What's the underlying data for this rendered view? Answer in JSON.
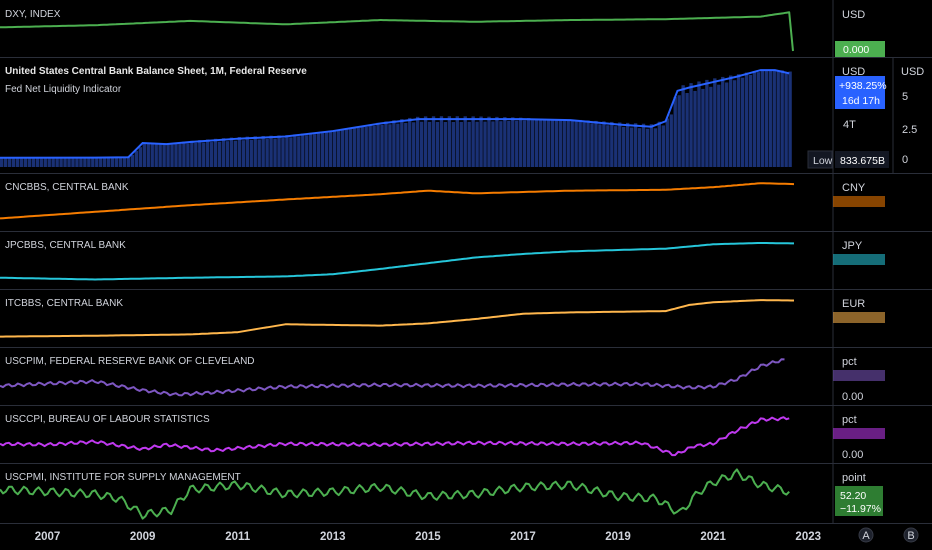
{
  "chart_data": [
    {
      "type": "line",
      "title": "DXY, INDEX",
      "unit": "USD",
      "last_value_label": "0.000",
      "color": "#4caf50",
      "x": [
        2006.0,
        2008.0,
        2010.0,
        2012.0,
        2014.0,
        2016.0,
        2018.0,
        2020.0,
        2022.0,
        2022.6,
        2022.68
      ],
      "values": [
        0.55,
        0.6,
        0.7,
        0.62,
        0.72,
        0.68,
        0.72,
        0.74,
        0.8,
        0.9,
        0.0
      ],
      "ylim": [
        0,
        1
      ]
    },
    {
      "type": "area",
      "title": "United States Central Bank Balance Sheet, 1M, Federal Reserve",
      "subtitle": "Fed Net Liquidity Indicator",
      "unit": "USD",
      "unit_right": "USD",
      "color": "#2962ff",
      "badges": {
        "pct": "+938.25%",
        "countdown": "16d 17h",
        "low_label": "Low",
        "low_value": "833.675B"
      },
      "y_ticks_left": [
        "4T"
      ],
      "y_ticks_right": [
        "5",
        "2.5",
        "0"
      ],
      "x": [
        2006.0,
        2008.0,
        2008.7,
        2009.0,
        2009.5,
        2010.0,
        2011.0,
        2012.0,
        2013.0,
        2014.0,
        2014.8,
        2016.0,
        2017.0,
        2018.0,
        2019.0,
        2019.7,
        2020.0,
        2020.25,
        2020.5,
        2021.0,
        2021.5,
        2022.0,
        2022.3,
        2022.6
      ],
      "values": [
        0.85,
        0.86,
        0.9,
        2.2,
        2.1,
        2.3,
        2.6,
        2.8,
        3.3,
        4.0,
        4.4,
        4.4,
        4.4,
        4.3,
        3.9,
        3.7,
        4.2,
        7.0,
        7.3,
        7.8,
        8.3,
        8.9,
        8.9,
        8.6
      ],
      "ylim": [
        0,
        9
      ]
    },
    {
      "type": "line",
      "title": "CNCBBS, CENTRAL BANK",
      "unit": "CNY",
      "color": "#f57c00",
      "x": [
        2006.0,
        2008.0,
        2010.0,
        2012.0,
        2014.0,
        2015.0,
        2016.0,
        2018.0,
        2020.0,
        2021.0,
        2022.0,
        2022.7
      ],
      "values": [
        0.15,
        0.3,
        0.45,
        0.58,
        0.7,
        0.78,
        0.72,
        0.78,
        0.8,
        0.86,
        0.95,
        0.93
      ],
      "ylim": [
        0,
        1
      ]
    },
    {
      "type": "line",
      "title": "JPCBBS, CENTRAL BANK",
      "unit": "JPY",
      "color": "#26c6da",
      "x": [
        2006.0,
        2008.0,
        2010.0,
        2012.0,
        2013.0,
        2014.0,
        2015.0,
        2016.0,
        2017.0,
        2018.0,
        2019.0,
        2020.0,
        2021.0,
        2022.0,
        2022.7
      ],
      "values": [
        0.12,
        0.08,
        0.12,
        0.15,
        0.2,
        0.32,
        0.45,
        0.58,
        0.66,
        0.72,
        0.75,
        0.78,
        0.88,
        0.91,
        0.9
      ],
      "ylim": [
        0,
        1
      ]
    },
    {
      "type": "line",
      "title": "ITCBBS, CENTRAL BANK",
      "unit": "EUR",
      "color": "#ffb74d",
      "x": [
        2006.0,
        2008.0,
        2010.0,
        2011.0,
        2012.0,
        2014.0,
        2015.0,
        2016.0,
        2017.0,
        2018.0,
        2020.0,
        2020.5,
        2021.0,
        2022.0,
        2022.7
      ],
      "values": [
        0.1,
        0.12,
        0.15,
        0.2,
        0.38,
        0.35,
        0.4,
        0.5,
        0.62,
        0.65,
        0.68,
        0.82,
        0.88,
        0.93,
        0.92
      ],
      "ylim": [
        0,
        1
      ]
    },
    {
      "type": "line",
      "title": "USCPIM, FEDERAL RESERVE BANK OF CLEVELAND",
      "unit": "pct",
      "y_tick": "0.00",
      "color": "#7e57c2",
      "x": [
        2006.0,
        2007.0,
        2008.0,
        2009.0,
        2009.7,
        2010.5,
        2012.0,
        2014.0,
        2016.0,
        2018.0,
        2019.5,
        2020.5,
        2021.0,
        2021.5,
        2022.0,
        2022.5
      ],
      "values": [
        0.3,
        0.35,
        0.4,
        0.2,
        0.1,
        0.15,
        0.28,
        0.32,
        0.3,
        0.33,
        0.34,
        0.26,
        0.28,
        0.45,
        0.75,
        0.9
      ],
      "ylim": [
        0,
        1
      ]
    },
    {
      "type": "line",
      "title": "USCCPI, BUREAU OF LABOUR STATISTICS",
      "unit": "pct",
      "y_tick": "0.00",
      "color": "#c039f0",
      "x": [
        2006.0,
        2007.0,
        2008.0,
        2009.0,
        2009.5,
        2010.5,
        2012.0,
        2014.0,
        2016.0,
        2018.0,
        2019.5,
        2020.2,
        2020.6,
        2021.0,
        2021.4,
        2022.0,
        2022.6
      ],
      "values": [
        0.3,
        0.28,
        0.35,
        0.18,
        0.28,
        0.15,
        0.3,
        0.28,
        0.32,
        0.3,
        0.32,
        0.05,
        0.25,
        0.3,
        0.55,
        0.85,
        0.88
      ],
      "ylim": [
        0,
        1
      ]
    },
    {
      "type": "line",
      "title": "USCPMI, INSTITUTE FOR SUPPLY MANAGEMENT",
      "unit": "point",
      "last_value_label": "52.20",
      "change_label": "−11.97%",
      "color": "#4caf50",
      "x": [
        2006.0,
        2007.0,
        2008.0,
        2008.5,
        2009.0,
        2009.6,
        2010.0,
        2011.0,
        2012.0,
        2013.0,
        2014.0,
        2015.0,
        2016.0,
        2017.0,
        2018.0,
        2019.0,
        2019.8,
        2020.3,
        2020.7,
        2021.0,
        2021.5,
        2022.0,
        2022.6
      ],
      "values": [
        0.6,
        0.55,
        0.5,
        0.4,
        0.05,
        0.15,
        0.6,
        0.7,
        0.5,
        0.55,
        0.65,
        0.45,
        0.5,
        0.65,
        0.7,
        0.45,
        0.4,
        0.08,
        0.55,
        0.75,
        0.95,
        0.7,
        0.55
      ],
      "ylim": [
        0,
        1
      ]
    }
  ],
  "x_axis": {
    "xlim": [
      2006.0,
      2023.5
    ],
    "ticks": [
      "2007",
      "2009",
      "2011",
      "2013",
      "2015",
      "2017",
      "2019",
      "2021",
      "2023"
    ]
  },
  "corner_buttons": {
    "a": "A",
    "b": "B"
  }
}
